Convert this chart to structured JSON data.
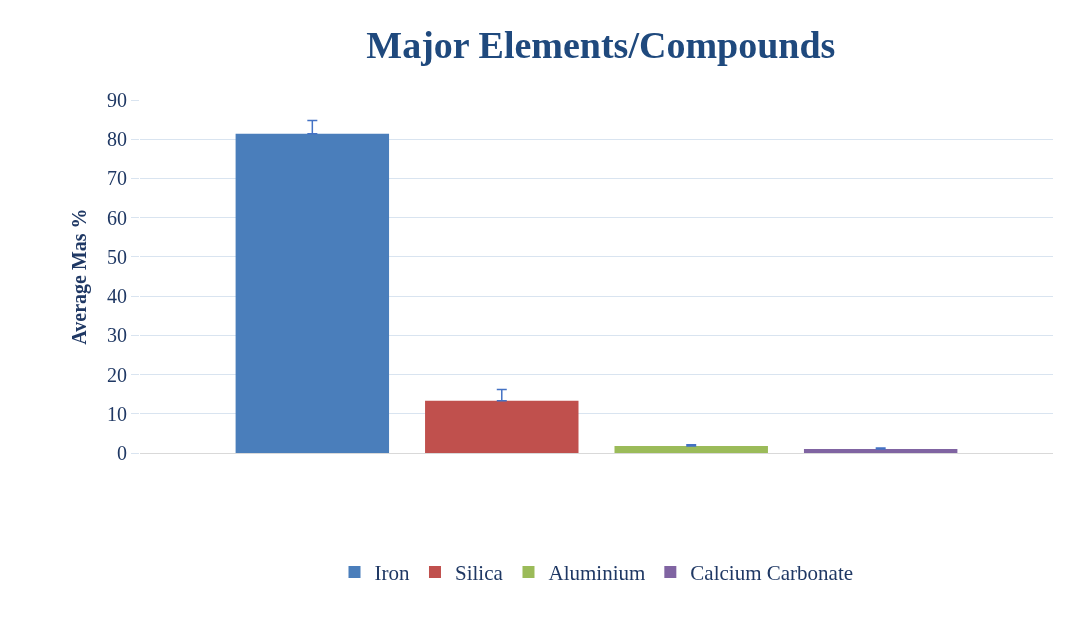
{
  "chart_data": {
    "type": "bar",
    "title": "Major Elements/Compounds",
    "ylabel": "Average Mas %",
    "categories": [
      null
    ],
    "series": [
      {
        "name": "Iron",
        "color": "#4a7ebb",
        "values": [
          81.4
        ],
        "errors": [
          [
            81.4,
            84.8
          ]
        ]
      },
      {
        "name": "Silica",
        "color": "#c0504d",
        "values": [
          13.3
        ],
        "errors": [
          [
            13.3,
            16.2
          ]
        ]
      },
      {
        "name": "Aluminium",
        "color": "#9bbb59",
        "values": [
          1.8
        ],
        "errors": [
          [
            1.8,
            2.1
          ]
        ]
      },
      {
        "name": "Calcium Carbonate",
        "color": "#8064a2",
        "values": [
          1.0
        ],
        "errors": [
          [
            1.0,
            1.3
          ]
        ]
      }
    ],
    "ylim": [
      0,
      90
    ],
    "yticks": [
      0,
      10,
      20,
      30,
      40,
      50,
      60,
      70,
      80,
      90
    ],
    "grid": "y",
    "legend": "bottom",
    "tick_labels": "y"
  }
}
